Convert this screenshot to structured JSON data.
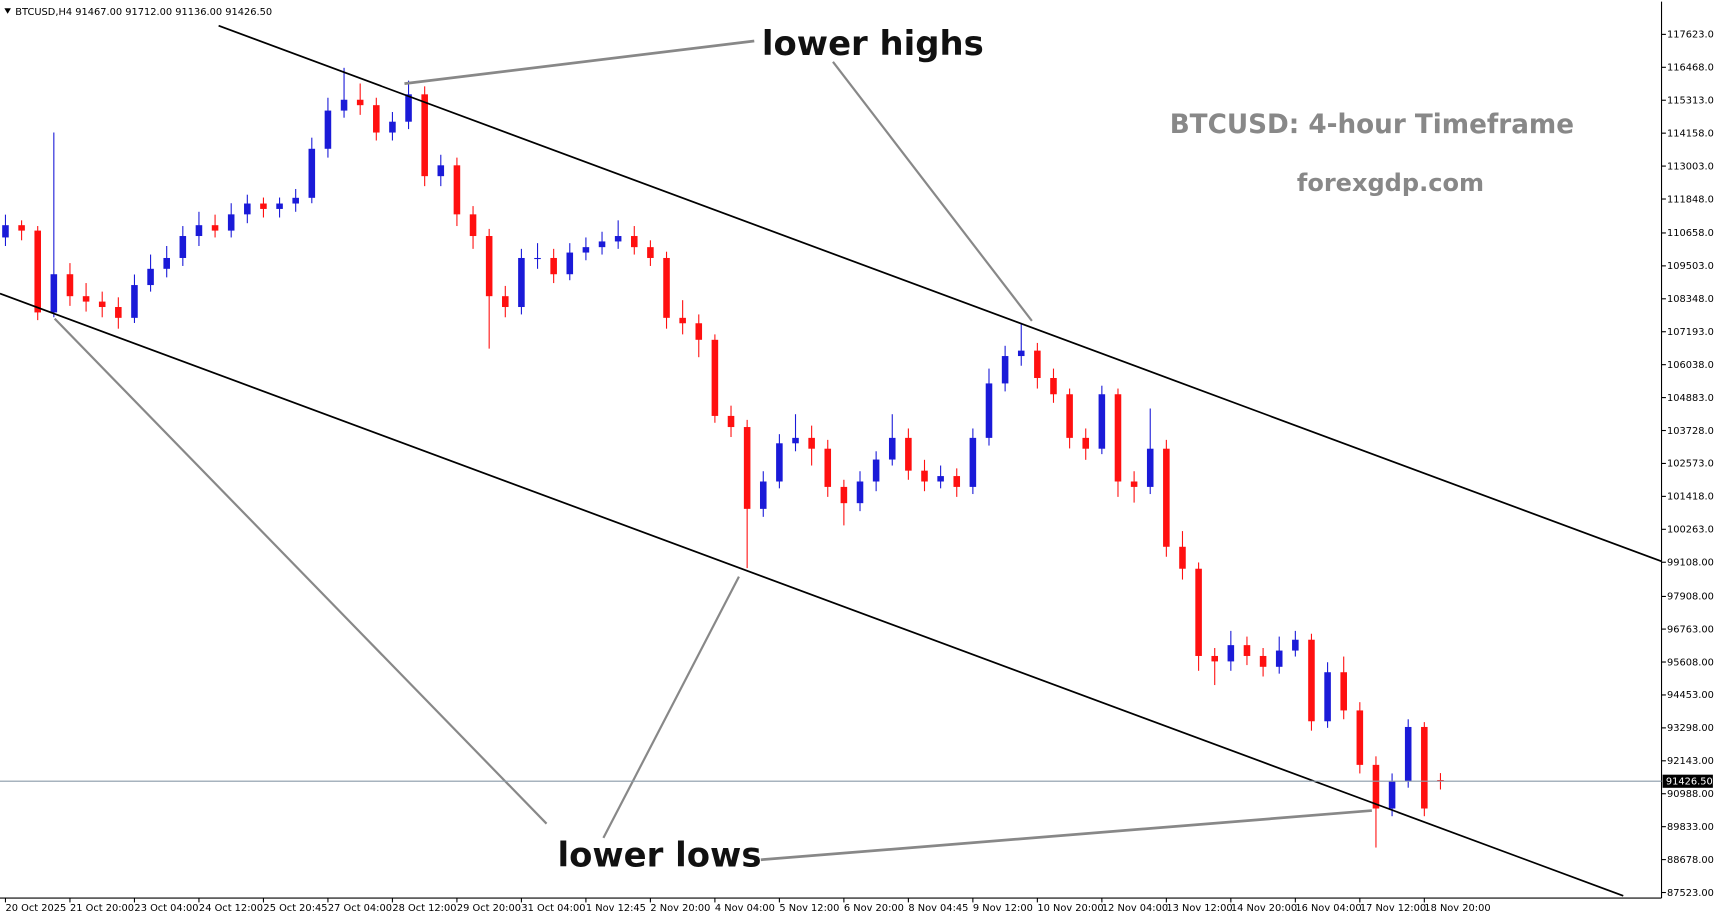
{
  "chart_data": {
    "type": "candlestick",
    "header": "BTCUSD,H4  91467.00 91712.00 91136.00 91426.50",
    "title": "BTCUSD: 4-hour Timeframe",
    "subtitle": "forexgdp.com",
    "annotations": [
      "lower highs",
      "lower lows"
    ],
    "up_color": "#1a1ad8",
    "down_color": "#ff1010",
    "ylim": [
      87330,
      118770
    ],
    "yticks": [
      {
        "value": 117623,
        "label": "117623.00"
      },
      {
        "value": 116468,
        "label": "116468.00"
      },
      {
        "value": 115313,
        "label": "115313.00"
      },
      {
        "value": 114158,
        "label": "114158.00"
      },
      {
        "value": 113003,
        "label": "113003.00"
      },
      {
        "value": 111848,
        "label": "111848.00"
      },
      {
        "value": 110658,
        "label": "110658.00"
      },
      {
        "value": 109503,
        "label": "109503.00"
      },
      {
        "value": 108348,
        "label": "108348.00"
      },
      {
        "value": 107193,
        "label": "107193.00"
      },
      {
        "value": 106038,
        "label": "106038.00"
      },
      {
        "value": 104883,
        "label": "104883.00"
      },
      {
        "value": 103728,
        "label": "103728.00"
      },
      {
        "value": 102573,
        "label": "102573.00"
      },
      {
        "value": 101418,
        "label": "101418.00"
      },
      {
        "value": 100263,
        "label": "100263.00"
      },
      {
        "value": 99108,
        "label": "99108.00"
      },
      {
        "value": 97908,
        "label": "97908.00"
      },
      {
        "value": 96763,
        "label": "96763.00"
      },
      {
        "value": 95608,
        "label": "95608.00"
      },
      {
        "value": 94453,
        "label": "94453.00"
      },
      {
        "value": 93298,
        "label": "93298.00"
      },
      {
        "value": 92143,
        "label": "92143.00"
      },
      {
        "value": 90988,
        "label": "90988.00"
      },
      {
        "value": 89833,
        "label": "89833.00"
      },
      {
        "value": 88678,
        "label": "88678.00"
      },
      {
        "value": 87523,
        "label": "87523.00"
      }
    ],
    "current_price": {
      "value": 91426.5,
      "label": "91426.50"
    },
    "xticks": [
      {
        "value": 0,
        "label": "20 Oct 2025"
      },
      {
        "value": 4,
        "label": "21 Oct 20:00"
      },
      {
        "value": 8,
        "label": "23 Oct 04:00"
      },
      {
        "value": 12,
        "label": "24 Oct 12:00"
      },
      {
        "value": 16,
        "label": "25 Oct 20:45"
      },
      {
        "value": 20,
        "label": "27 Oct 04:00"
      },
      {
        "value": 24,
        "label": "28 Oct 12:00"
      },
      {
        "value": 28,
        "label": "29 Oct 20:00"
      },
      {
        "value": 32,
        "label": "31 Oct 04:00"
      },
      {
        "value": 36,
        "label": "1 Nov 12:45"
      },
      {
        "value": 40,
        "label": "2 Nov 20:00"
      },
      {
        "value": 44,
        "label": "4 Nov 04:00"
      },
      {
        "value": 48,
        "label": "5 Nov 12:00"
      },
      {
        "value": 52,
        "label": "6 Nov 20:00"
      },
      {
        "value": 56,
        "label": "8 Nov 04:45"
      },
      {
        "value": 60,
        "label": "9 Nov 12:00"
      },
      {
        "value": 64,
        "label": "10 Nov 20:00"
      },
      {
        "value": 68,
        "label": "12 Nov 04:00"
      },
      {
        "value": 72,
        "label": "13 Nov 12:00"
      },
      {
        "value": 76,
        "label": "14 Nov 20:00"
      },
      {
        "value": 80,
        "label": "16 Nov 04:00"
      },
      {
        "value": 84,
        "label": "17 Nov 12:00"
      },
      {
        "value": 88,
        "label": "18 Nov 20:00"
      }
    ],
    "ohlc": [
      [
        110500,
        111300,
        110200,
        110930
      ],
      [
        110930,
        111100,
        110400,
        110740
      ],
      [
        110740,
        110900,
        107600,
        107870
      ],
      [
        107870,
        114180,
        107700,
        109210
      ],
      [
        109210,
        109600,
        108100,
        108440
      ],
      [
        108440,
        108900,
        107900,
        108250
      ],
      [
        108250,
        108600,
        107700,
        108060
      ],
      [
        108060,
        108400,
        107300,
        107680
      ],
      [
        107680,
        109200,
        107500,
        108830
      ],
      [
        108830,
        109900,
        108600,
        109400
      ],
      [
        109400,
        110200,
        109100,
        109780
      ],
      [
        109780,
        110900,
        109500,
        110550
      ],
      [
        110550,
        111400,
        110200,
        110930
      ],
      [
        110930,
        111300,
        110500,
        110740
      ],
      [
        110740,
        111700,
        110500,
        111310
      ],
      [
        111310,
        112000,
        111000,
        111690
      ],
      [
        111690,
        111900,
        111200,
        111500
      ],
      [
        111500,
        111900,
        111200,
        111690
      ],
      [
        111690,
        112200,
        111400,
        111890
      ],
      [
        111890,
        114000,
        111700,
        113610
      ],
      [
        113610,
        115400,
        113300,
        114950
      ],
      [
        114950,
        116450,
        114700,
        115330
      ],
      [
        115330,
        115900,
        114800,
        115140
      ],
      [
        115140,
        115400,
        113900,
        114180
      ],
      [
        114180,
        114900,
        113900,
        114560
      ],
      [
        114560,
        116000,
        114300,
        115520
      ],
      [
        115520,
        115800,
        112300,
        112650
      ],
      [
        112650,
        113400,
        112300,
        113030
      ],
      [
        113030,
        113300,
        110900,
        111310
      ],
      [
        111310,
        111600,
        110100,
        110550
      ],
      [
        110550,
        110800,
        106600,
        108440
      ],
      [
        108440,
        108800,
        107700,
        108060
      ],
      [
        108060,
        110100,
        107800,
        109780
      ],
      [
        109780,
        110300,
        109400,
        109780
      ],
      [
        109780,
        110100,
        108900,
        109210
      ],
      [
        109210,
        110300,
        109000,
        109970
      ],
      [
        109970,
        110500,
        109700,
        110160
      ],
      [
        110160,
        110700,
        109900,
        110360
      ],
      [
        110360,
        111100,
        110100,
        110550
      ],
      [
        110550,
        110900,
        109900,
        110160
      ],
      [
        110160,
        110400,
        109500,
        109780
      ],
      [
        109780,
        110000,
        107300,
        107680
      ],
      [
        107680,
        108300,
        107100,
        107490
      ],
      [
        107490,
        107800,
        106300,
        106910
      ],
      [
        106910,
        107100,
        104000,
        104240
      ],
      [
        104240,
        104600,
        103500,
        103850
      ],
      [
        103850,
        104100,
        98900,
        100980
      ],
      [
        100980,
        102300,
        100700,
        101940
      ],
      [
        101940,
        103600,
        101700,
        103280
      ],
      [
        103280,
        104300,
        103000,
        103470
      ],
      [
        103470,
        103900,
        102500,
        103090
      ],
      [
        103090,
        103400,
        101400,
        101750
      ],
      [
        101750,
        102000,
        100400,
        101180
      ],
      [
        101180,
        102300,
        100900,
        101940
      ],
      [
        101940,
        103000,
        101600,
        102710
      ],
      [
        102710,
        104300,
        102500,
        103470
      ],
      [
        103470,
        103800,
        102000,
        102320
      ],
      [
        102320,
        102700,
        101600,
        101940
      ],
      [
        101940,
        102500,
        101700,
        102130
      ],
      [
        102130,
        102400,
        101400,
        101750
      ],
      [
        101750,
        103800,
        101500,
        103470
      ],
      [
        103470,
        105900,
        103200,
        105380
      ],
      [
        105380,
        106700,
        105100,
        106340
      ],
      [
        106340,
        107500,
        106000,
        106530
      ],
      [
        106530,
        106800,
        105200,
        105570
      ],
      [
        105570,
        105900,
        104700,
        105000
      ],
      [
        105000,
        105200,
        103100,
        103470
      ],
      [
        103470,
        103800,
        102700,
        103090
      ],
      [
        103090,
        105300,
        102900,
        105000
      ],
      [
        105000,
        105200,
        101400,
        101940
      ],
      [
        101940,
        102300,
        101200,
        101750
      ],
      [
        101750,
        104500,
        101500,
        103090
      ],
      [
        103090,
        103400,
        99300,
        99650
      ],
      [
        99650,
        100200,
        98500,
        98880
      ],
      [
        98880,
        99100,
        95300,
        95820
      ],
      [
        95820,
        96100,
        94800,
        95630
      ],
      [
        95630,
        96700,
        95300,
        96200
      ],
      [
        96200,
        96500,
        95500,
        95820
      ],
      [
        95820,
        96100,
        95100,
        95440
      ],
      [
        95440,
        96500,
        95200,
        96010
      ],
      [
        96010,
        96700,
        95800,
        96390
      ],
      [
        96390,
        96600,
        93200,
        93530
      ],
      [
        93530,
        95600,
        93300,
        95250
      ],
      [
        95250,
        95800,
        93600,
        93910
      ],
      [
        93910,
        94200,
        91700,
        92000
      ],
      [
        92000,
        92300,
        89100,
        90470
      ],
      [
        90470,
        91700,
        90200,
        91420
      ],
      [
        91420,
        93600,
        91200,
        93330
      ],
      [
        93330,
        93500,
        90200,
        90470
      ],
      [
        91467,
        91712,
        91136,
        91426.5
      ]
    ]
  }
}
